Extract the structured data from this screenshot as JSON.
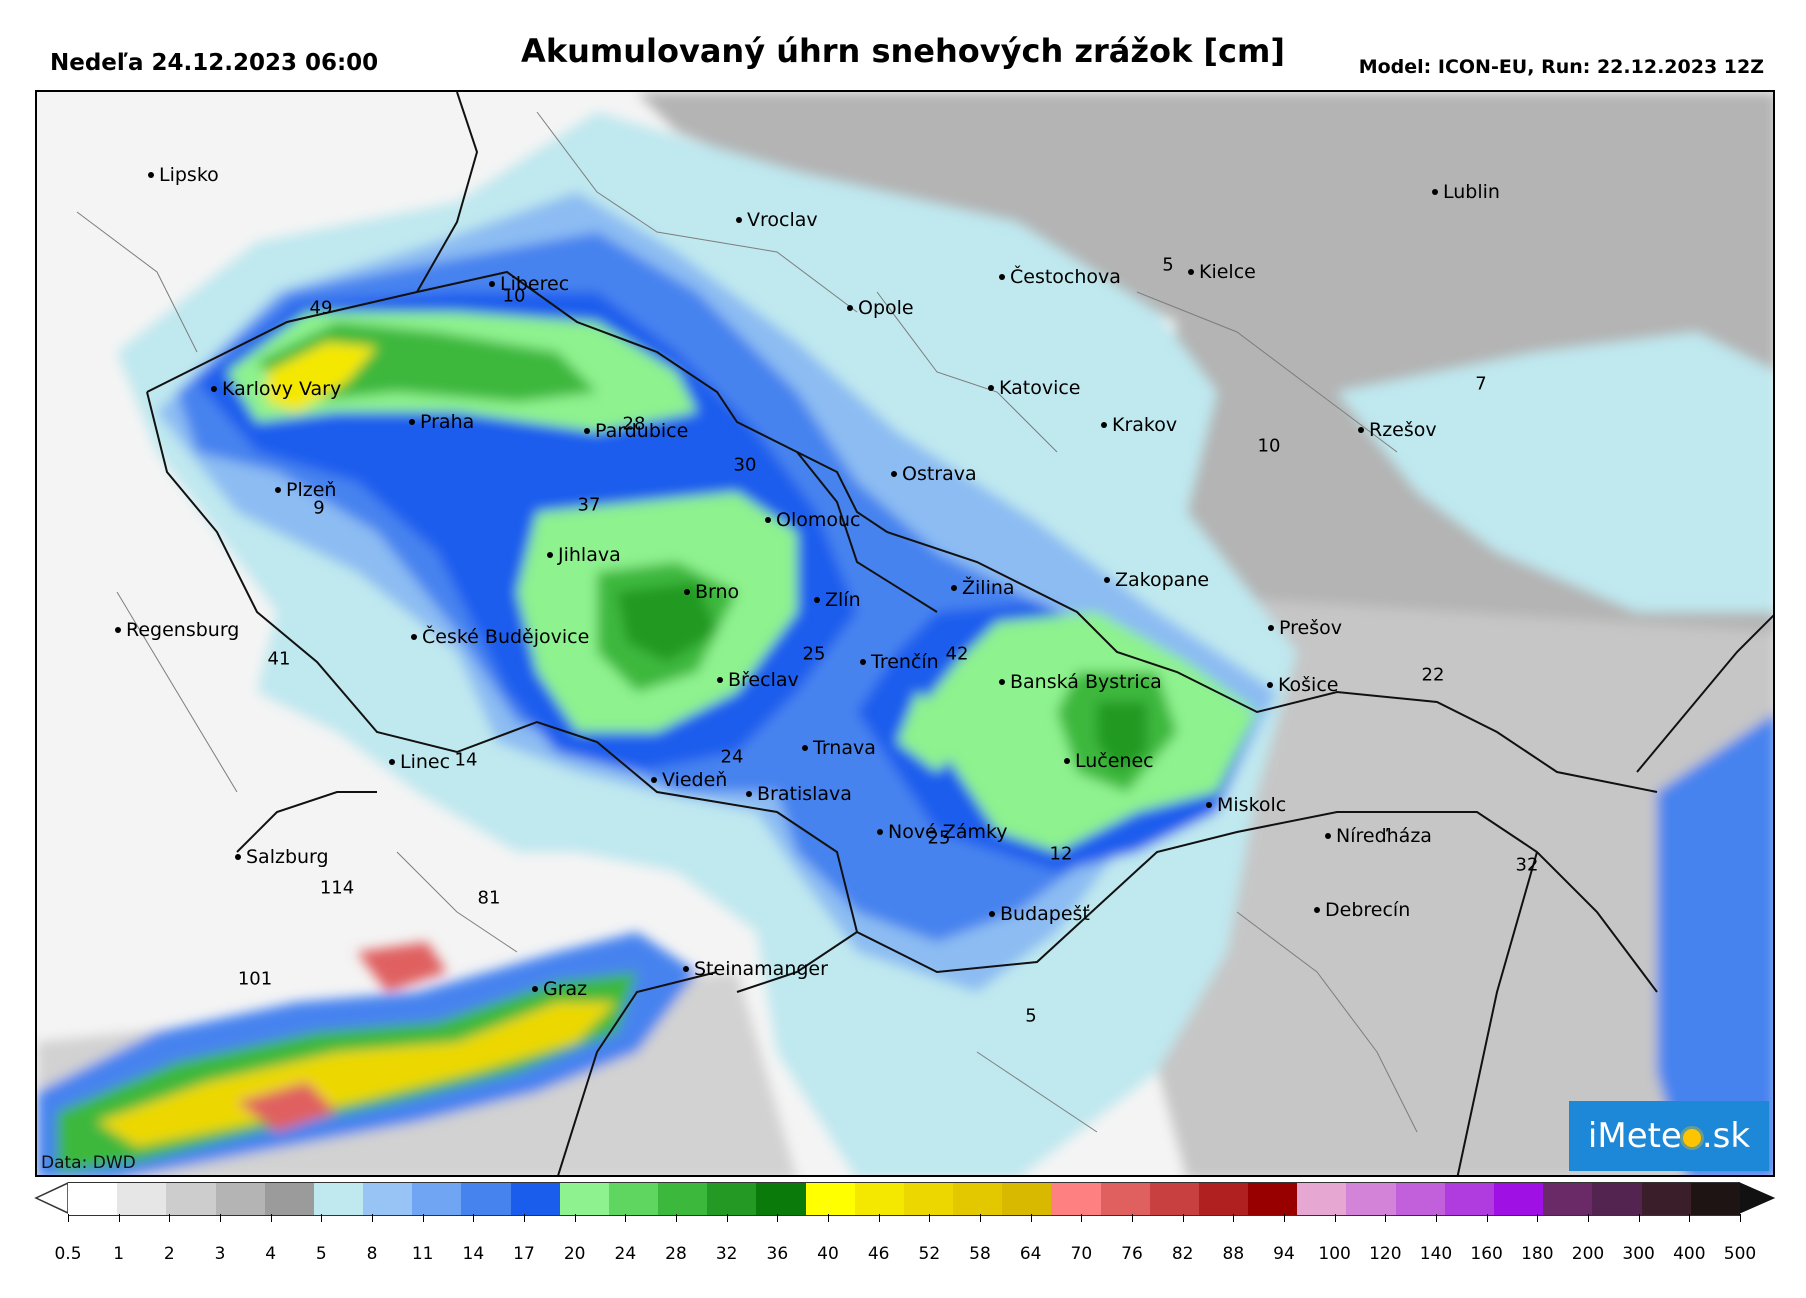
{
  "header": {
    "date_label": "Nedeľa 24.12.2023 06:00",
    "title": "Akumulovaný úhrn snehových zrážok [cm]",
    "model_label": "Model: ICON-EU, Run: 22.12.2023 12Z"
  },
  "map": {
    "source_label": "Data: DWD",
    "logo": {
      "pre": "iMete",
      "post": ".sk"
    },
    "cities": [
      {
        "id": "lipsko",
        "name": "Lipsko"
      },
      {
        "id": "karlovy-vary",
        "name": "Karlovy Vary"
      },
      {
        "id": "praha",
        "name": "Praha"
      },
      {
        "id": "plzen",
        "name": "Plzeň"
      },
      {
        "id": "regensburg",
        "name": "Regensburg"
      },
      {
        "id": "ceske-budejovice",
        "name": "České Budějovice"
      },
      {
        "id": "linec",
        "name": "Linec"
      },
      {
        "id": "salzburg",
        "name": "Salzburg"
      },
      {
        "id": "graz",
        "name": "Graz"
      },
      {
        "id": "vieden",
        "name": "Viedeň"
      },
      {
        "id": "bratislava",
        "name": "Bratislava"
      },
      {
        "id": "trnava",
        "name": "Trnava"
      },
      {
        "id": "steinamanger",
        "name": "Steinamanger"
      },
      {
        "id": "liberec",
        "name": "Liberec"
      },
      {
        "id": "pardubice",
        "name": "Pardubice"
      },
      {
        "id": "jihlava",
        "name": "Jihlava"
      },
      {
        "id": "brno",
        "name": "Brno"
      },
      {
        "id": "breclav",
        "name": "Břeclav"
      },
      {
        "id": "vroclav",
        "name": "Vroclav"
      },
      {
        "id": "opole",
        "name": "Opole"
      },
      {
        "id": "olomouc",
        "name": "Olomouc"
      },
      {
        "id": "ostrava",
        "name": "Ostrava"
      },
      {
        "id": "zlin",
        "name": "Zlín"
      },
      {
        "id": "trencin",
        "name": "Trenčín"
      },
      {
        "id": "zilina",
        "name": "Žilina"
      },
      {
        "id": "banska-bystrica",
        "name": "Banská Bystrica"
      },
      {
        "id": "nove-zamky",
        "name": "Nové Zámky"
      },
      {
        "id": "budapest",
        "name": "Budapešť"
      },
      {
        "id": "lucenec",
        "name": "Lučenec"
      },
      {
        "id": "zakopane",
        "name": "Zakopane"
      },
      {
        "id": "katovice",
        "name": "Katovice"
      },
      {
        "id": "cestochova",
        "name": "Čestochova"
      },
      {
        "id": "krakov",
        "name": "Krakov"
      },
      {
        "id": "kielce",
        "name": "Kielce"
      },
      {
        "id": "lublin",
        "name": "Lublin"
      },
      {
        "id": "rzesov",
        "name": "Rzešov"
      },
      {
        "id": "presov",
        "name": "Prešov"
      },
      {
        "id": "kosice",
        "name": "Košice"
      },
      {
        "id": "miskolc",
        "name": "Miskolc"
      },
      {
        "id": "niredhaza",
        "name": "Níreďháza"
      },
      {
        "id": "debrecin",
        "name": "Debrecín"
      }
    ],
    "value_labels": [
      "49",
      "10",
      "28",
      "30",
      "37",
      "9",
      "41",
      "14",
      "24",
      "25",
      "42",
      "25",
      "12",
      "5",
      "7",
      "10",
      "5",
      "22",
      "32",
      "114",
      "81",
      "101"
    ]
  },
  "colorbar": {
    "ticks": [
      "0.5",
      "1",
      "2",
      "3",
      "4",
      "5",
      "8",
      "11",
      "14",
      "17",
      "20",
      "24",
      "28",
      "32",
      "36",
      "40",
      "46",
      "52",
      "58",
      "64",
      "70",
      "76",
      "82",
      "88",
      "94",
      "100",
      "120",
      "140",
      "160",
      "180",
      "200",
      "300",
      "400",
      "500"
    ],
    "colors": [
      "#ffffff",
      "#e6e6e6",
      "#cdcdcd",
      "#b4b4b4",
      "#9b9b9b",
      "#bfe8ef",
      "#98c4f5",
      "#6fa5f2",
      "#4683ef",
      "#1a5ded",
      "#8ef28e",
      "#5fd65f",
      "#3cb83c",
      "#249a24",
      "#0a7a0a",
      "#ffff00",
      "#f5e800",
      "#ecd800",
      "#e3c800",
      "#d9b800",
      "#ff8080",
      "#e06060",
      "#c84040",
      "#b02020",
      "#980000",
      "#e6a8d2",
      "#d484d8",
      "#c260dc",
      "#b03ce0",
      "#9e10e4",
      "#6a2a68",
      "#52244f",
      "#3a1e2a",
      "#1e1414"
    ]
  }
}
